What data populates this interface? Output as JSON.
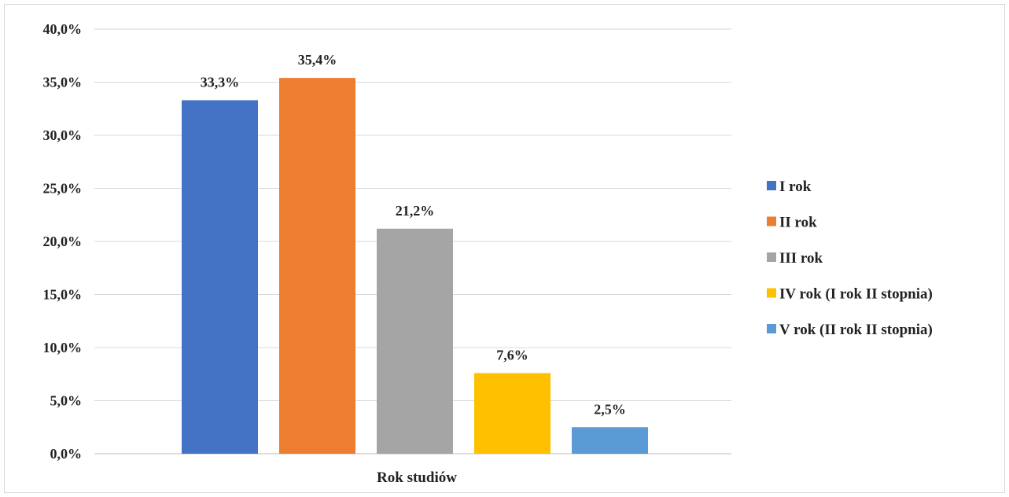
{
  "chart_data": {
    "type": "bar",
    "xlabel": "Rok studiów",
    "ylabel": "",
    "ylim": [
      0,
      40
    ],
    "ytick_labels": [
      "0,0%",
      "5,0%",
      "10,0%",
      "15,0%",
      "20,0%",
      "25,0%",
      "30,0%",
      "35,0%",
      "40,0%"
    ],
    "ytick_values": [
      0,
      5,
      10,
      15,
      20,
      25,
      30,
      35,
      40
    ],
    "grid": true,
    "legend_position": "right",
    "series": [
      {
        "name": "I rok",
        "value": 33.3,
        "label": "33,3%",
        "color": "#4472C4"
      },
      {
        "name": "II rok",
        "value": 35.4,
        "label": "35,4%",
        "color": "#ED7D31"
      },
      {
        "name": "III rok",
        "value": 21.2,
        "label": "21,2%",
        "color": "#A5A5A5"
      },
      {
        "name": "IV rok (I rok II stopnia)",
        "value": 7.6,
        "label": "7,6%",
        "color": "#FFC000"
      },
      {
        "name": "V rok (II rok II stopnia)",
        "value": 2.5,
        "label": "2,5%",
        "color": "#5B9BD5"
      }
    ]
  }
}
